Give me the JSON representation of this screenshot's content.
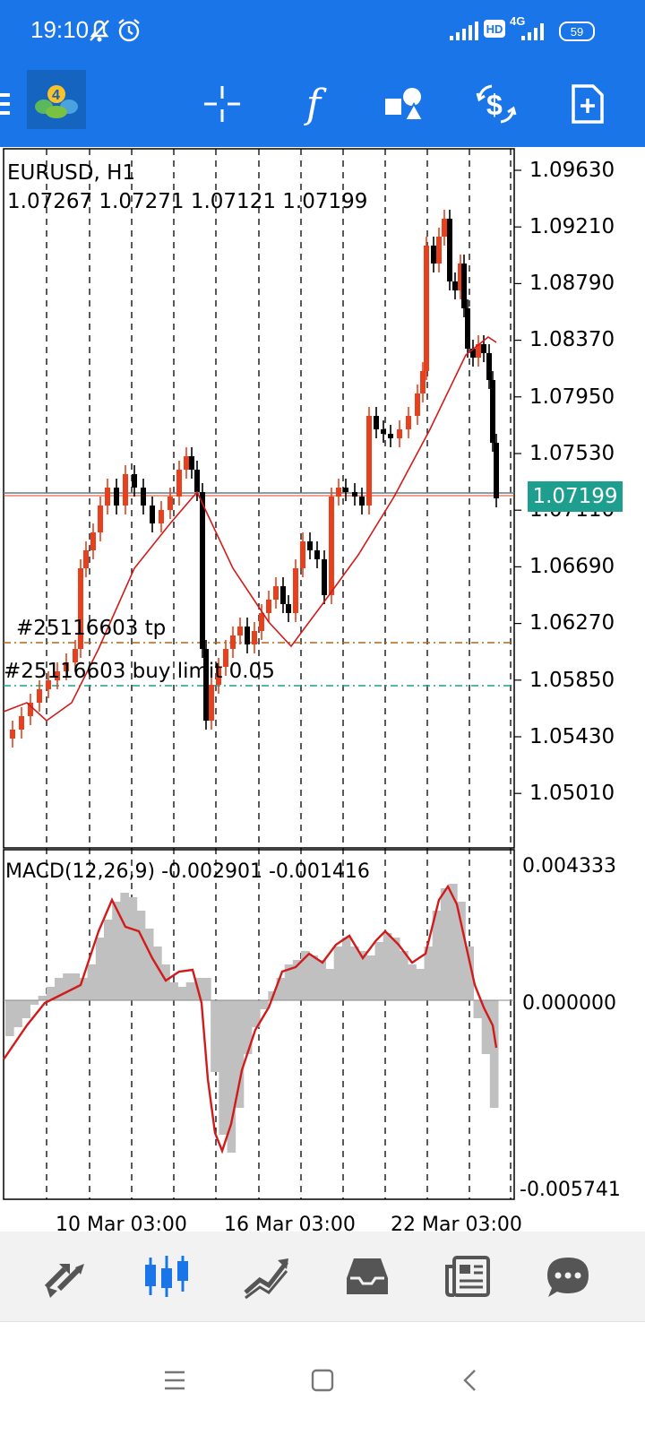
{
  "status_bar": {
    "time": "19:10",
    "left_icons": [
      "bell-off-icon",
      "alarm-icon"
    ],
    "right_icons": [
      "signal-icon",
      "hd-icon",
      "4g-signal-icon",
      "battery-icon"
    ],
    "hd_label": "HD",
    "network_label": "4G",
    "battery_level": "59"
  },
  "toolbar": {
    "buttons": [
      {
        "name": "menu",
        "icon": "menu-icon"
      },
      {
        "name": "symbol",
        "icon": "metatrader-logo-icon"
      },
      {
        "name": "crosshair",
        "icon": "crosshair-icon"
      },
      {
        "name": "indicators",
        "icon": "function-icon"
      },
      {
        "name": "objects",
        "icon": "shapes-icon"
      },
      {
        "name": "trade",
        "icon": "dollar-exchange-icon"
      },
      {
        "name": "new-order",
        "icon": "new-document-icon"
      }
    ],
    "indicators_glyph": "f"
  },
  "chart": {
    "symbol_timeframe": "EURUSD, H1",
    "ohlc": "1.07267 1.07271 1.07121 1.07199",
    "price_axis": [
      "1.09630",
      "1.09210",
      "1.08790",
      "1.08370",
      "1.07950",
      "1.07530",
      "1.07110",
      "1.06690",
      "1.06270",
      "1.05850",
      "1.05430",
      "1.05010"
    ],
    "current_price": "1.07199",
    "order_lines": [
      {
        "label": "#25116603 tp",
        "color": "#b5651d"
      },
      {
        "label": "#25116603 buy limit 0.05",
        "color": "#1e9e8e"
      }
    ],
    "macd": {
      "label": "MACD(12,26,9) -0.002901 -0.001416",
      "axis": [
        "0.004333",
        "0.000000",
        "-0.005741"
      ]
    },
    "time_axis": [
      "10 Mar 03:00",
      "16 Mar 03:00",
      "22 Mar 03:00"
    ],
    "colors": {
      "bull": "#e8401c",
      "bear": "#000000",
      "ma": "#d11b1b",
      "histogram": "#c0c0c0",
      "signal": "#d11b1b"
    }
  },
  "bottom_nav": {
    "items": [
      {
        "name": "quotes",
        "icon": "quotes-arrows-icon",
        "active": false
      },
      {
        "name": "chart",
        "icon": "candlestick-icon",
        "active": true
      },
      {
        "name": "trade",
        "icon": "trade-trend-icon",
        "active": false
      },
      {
        "name": "history",
        "icon": "inbox-icon",
        "active": false
      },
      {
        "name": "news",
        "icon": "news-icon",
        "active": false
      },
      {
        "name": "messages",
        "icon": "chat-icon",
        "active": false
      }
    ],
    "active_color": "#1a75e8",
    "inactive_color": "#555555"
  },
  "system_nav": {
    "buttons": [
      {
        "name": "recents",
        "icon": "menu-lines-icon"
      },
      {
        "name": "home",
        "icon": "square-icon"
      },
      {
        "name": "back",
        "icon": "back-chevron-icon"
      }
    ]
  }
}
